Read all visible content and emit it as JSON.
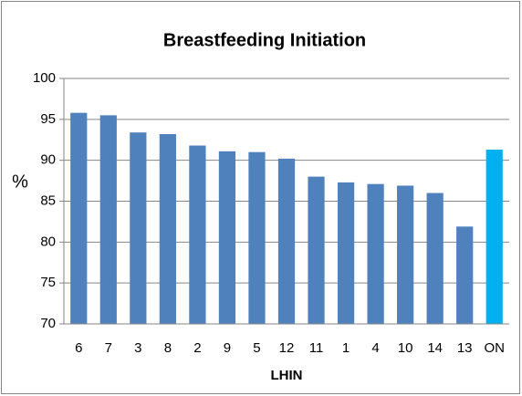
{
  "chart_data": {
    "type": "bar",
    "title": "Breastfeeding Initiation",
    "x_label": "LHIN",
    "y_label": "%",
    "categories": [
      "6",
      "7",
      "3",
      "8",
      "2",
      "9",
      "5",
      "12",
      "11",
      "1",
      "4",
      "10",
      "14",
      "13",
      "ON"
    ],
    "values": [
      95.8,
      95.5,
      93.4,
      93.2,
      91.8,
      91.1,
      91.0,
      90.2,
      88.0,
      87.3,
      87.1,
      86.9,
      86.0,
      81.9,
      91.3
    ],
    "colors": [
      "#4f81bd",
      "#4f81bd",
      "#4f81bd",
      "#4f81bd",
      "#4f81bd",
      "#4f81bd",
      "#4f81bd",
      "#4f81bd",
      "#4f81bd",
      "#4f81bd",
      "#4f81bd",
      "#4f81bd",
      "#4f81bd",
      "#4f81bd",
      "#00b0f0"
    ],
    "ylim": [
      70,
      100
    ],
    "yticks": [
      70,
      75,
      80,
      85,
      90,
      95,
      100
    ],
    "grid": true
  }
}
